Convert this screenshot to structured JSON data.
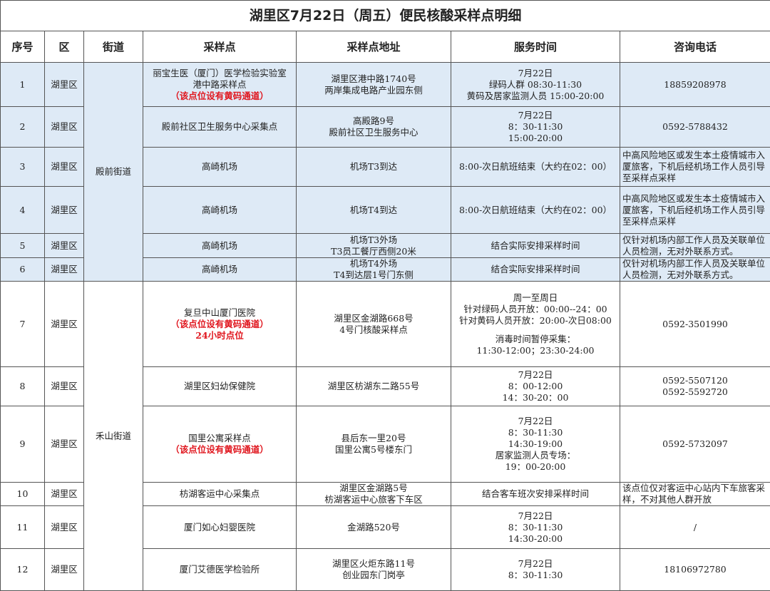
{
  "title": "湖里区7月22日（周五）便民核酸采样点明细",
  "headers": [
    "序号",
    "区",
    "街道",
    "采样点",
    "采样点地址",
    "服务时间",
    "咨询电话"
  ],
  "streets": [
    {
      "name": "殿前街道",
      "sites": [
        {
          "no": "1",
          "district": "湖里区",
          "site": [
            "丽宝生医（厦门）医学检验实验室",
            "港中路采样点"
          ],
          "notes": [
            "（该点位设有黄码通道）"
          ],
          "address": [
            "湖里区港中路1740号",
            "两岸集成电路产业园东侧"
          ],
          "time": [
            "7月22日",
            "绿码人群 08:30-11:30",
            "黄码及居家监测人员 15:00-20:00"
          ],
          "phone": [
            "18859208978"
          ]
        },
        {
          "no": "2",
          "district": "湖里区",
          "site": [
            "殿前社区卫生服务中心采集点"
          ],
          "address": [
            "高殿路9号",
            "殿前社区卫生服务中心"
          ],
          "time": [
            "7月22日",
            "8：30-11:30",
            "15:00-20:00"
          ],
          "phone": [
            "0592-5788432"
          ]
        },
        {
          "no": "3",
          "district": "湖里区",
          "site": [
            "高崎机场"
          ],
          "address": [
            "机场T3到达"
          ],
          "time": [
            "8:00-次日航班结束（大约在02：00）"
          ],
          "phone": [
            "中高风险地区或发生本土疫情城市入厦旅客，下机后经机场工作人员引导至采样点采样"
          ]
        },
        {
          "no": "4",
          "district": "湖里区",
          "site": [
            "高崎机场"
          ],
          "address": [
            "机场T4到达"
          ],
          "time": [
            "8:00-次日航班结束（大约在02：00）"
          ],
          "phone": [
            "中高风险地区或发生本土疫情城市入厦旅客，下机后经机场工作人员引导至采样点采样"
          ]
        },
        {
          "no": "5",
          "district": "湖里区",
          "site": [
            "高崎机场"
          ],
          "address": [
            "机场T3外场",
            "T3员工餐厅西侧20米"
          ],
          "time": [
            "结合实际安排采样时间"
          ],
          "phone": [
            "仅针对机场内部工作人员及关联单位人员检测，无对外联系方式。"
          ]
        },
        {
          "no": "6",
          "district": "湖里区",
          "site": [
            "高崎机场"
          ],
          "address": [
            "机场T4外场",
            "T4到达层1号门东侧"
          ],
          "time": [
            "结合实际安排采样时间"
          ],
          "phone": [
            "仅针对机场内部工作人员及关联单位人员检测，无对外联系方式。"
          ]
        }
      ]
    },
    {
      "name": "禾山街道",
      "sites": [
        {
          "no": "7",
          "district": "湖里区",
          "site": [
            "复旦中山厦门医院"
          ],
          "notes": [
            "（该点位设有黄码通道）",
            "24小时点位"
          ],
          "address": [
            "湖里区金湖路668号",
            "4号门核酸采样点"
          ],
          "time": [
            [
              "周一至周日",
              "针对绿码人员开放：00:00--24：00",
              "针对黄码人员开放：20:00-次日08:00"
            ],
            [
              "消毒时间暂停采集：",
              "11:30-12:00；23:30-24:00"
            ]
          ],
          "phone": [
            "0592-3501990"
          ]
        },
        {
          "no": "8",
          "district": "湖里区",
          "site": [
            "湖里区妇幼保健院"
          ],
          "address": [
            "湖里区枋湖东二路55号"
          ],
          "time": [
            "7月22日",
            "8：00-12:00",
            "14：30-20：00"
          ],
          "phone": [
            "0592-5507120",
            "0592-5592720"
          ]
        },
        {
          "no": "9",
          "district": "湖里区",
          "site": [
            "国里公寓采样点"
          ],
          "notes": [
            "（该点位设有黄码通道）"
          ],
          "address": [
            "县后东一里20号",
            "国里公寓5号楼东门"
          ],
          "time": [
            "7月22日",
            "8：30-11:30",
            "14:30-19:00",
            "居家监测人员专场：",
            "19：00-20:00"
          ],
          "phone": [
            "0592-5732097"
          ]
        },
        {
          "no": "10",
          "district": "湖里区",
          "site": [
            "枋湖客运中心采集点"
          ],
          "address": [
            "湖里区金湖路5号",
            "枋湖客运中心旅客下车区"
          ],
          "time": [
            "结合客车班次安排采样时间"
          ],
          "phone": [
            "该点位仅对客运中心站内下车旅客采样，不对其他人群开放"
          ]
        },
        {
          "no": "11",
          "district": "湖里区",
          "site": [
            "厦门如心妇婴医院"
          ],
          "address": [
            "金湖路520号"
          ],
          "time": [
            "7月22日",
            "8：30-11:30",
            "14:30-20:00"
          ],
          "phone": [
            "/"
          ]
        },
        {
          "no": "12",
          "district": "湖里区",
          "site": [
            "厦门艾德医学检验所"
          ],
          "address": [
            "湖里区火炬东路11号",
            "创业园东门岗亭"
          ],
          "time": [
            "7月22日",
            "8：30-11:30"
          ],
          "phone": [
            "18106972780"
          ]
        }
      ]
    }
  ]
}
